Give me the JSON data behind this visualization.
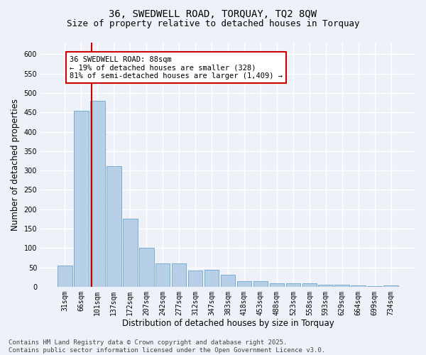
{
  "title": "36, SWEDWELL ROAD, TORQUAY, TQ2 8QW",
  "subtitle": "Size of property relative to detached houses in Torquay",
  "xlabel": "Distribution of detached houses by size in Torquay",
  "ylabel": "Number of detached properties",
  "bar_categories": [
    "31sqm",
    "66sqm",
    "101sqm",
    "137sqm",
    "172sqm",
    "207sqm",
    "242sqm",
    "277sqm",
    "312sqm",
    "347sqm",
    "383sqm",
    "418sqm",
    "453sqm",
    "488sqm",
    "523sqm",
    "558sqm",
    "593sqm",
    "629sqm",
    "664sqm",
    "699sqm",
    "734sqm"
  ],
  "bar_values": [
    55,
    455,
    480,
    312,
    175,
    100,
    60,
    60,
    42,
    43,
    30,
    14,
    14,
    9,
    9,
    9,
    6,
    6,
    3,
    2,
    4
  ],
  "bar_color": "#b8cfe8",
  "bar_edgecolor": "#7aadd4",
  "ylim": [
    0,
    630
  ],
  "yticks": [
    0,
    50,
    100,
    150,
    200,
    250,
    300,
    350,
    400,
    450,
    500,
    550,
    600
  ],
  "vline_bar_index": 1,
  "vline_color": "#cc0000",
  "annotation_text": "36 SWEDWELL ROAD: 88sqm\n← 19% of detached houses are smaller (328)\n81% of semi-detached houses are larger (1,409) →",
  "annotation_box_facecolor": "#ffffff",
  "annotation_box_edgecolor": "#cc0000",
  "footer_text": "Contains HM Land Registry data © Crown copyright and database right 2025.\nContains public sector information licensed under the Open Government Licence v3.0.",
  "background_color": "#eef2f8",
  "grid_color": "#ffffff",
  "title_fontsize": 10,
  "subtitle_fontsize": 9,
  "tick_fontsize": 7,
  "label_fontsize": 8.5,
  "footer_fontsize": 6.5,
  "annotation_fontsize": 7.5
}
